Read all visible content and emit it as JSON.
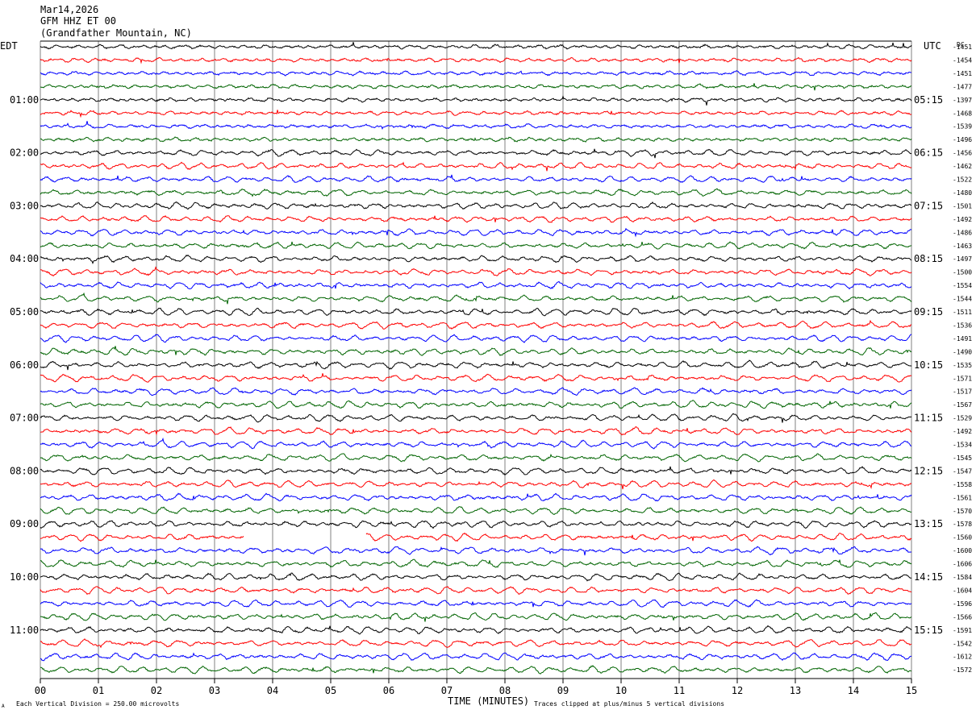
{
  "header": {
    "date": "Mar14,2026",
    "channel": "GFM HHZ ET 00",
    "station": "(Grandfather Mountain, NC)"
  },
  "labels": {
    "left_tz": "EDT",
    "right_tz": "UTC",
    "dc_header": "DC",
    "x_axis_title": "TIME (MINUTES)",
    "footer_left": "Each Vertical Division =  250.00 microvolts",
    "footer_right": "Traces clipped at plus/minus 5 vertical divisions",
    "footer_mark": "A"
  },
  "colors": [
    "#000000",
    "#ff0000",
    "#0000ff",
    "#006400"
  ],
  "chart_data": {
    "type": "line",
    "title": "GFM HHZ ET 00",
    "xlabel": "TIME (MINUTES)",
    "xlim": [
      0,
      15
    ],
    "x_ticks": [
      "00",
      "01",
      "02",
      "03",
      "04",
      "05",
      "06",
      "07",
      "08",
      "09",
      "10",
      "11",
      "12",
      "13",
      "14",
      "15"
    ],
    "trace_minutes": 15,
    "trace_count": 48,
    "left_hour_labels": [
      "01:00",
      "02:00",
      "03:00",
      "04:00",
      "05:00",
      "06:00",
      "07:00",
      "08:00",
      "09:00",
      "10:00",
      "11:00"
    ],
    "right_hour_labels": [
      "05:15",
      "06:15",
      "07:15",
      "08:15",
      "09:15",
      "10:15",
      "11:15",
      "12:15",
      "13:15",
      "14:15",
      "15:15"
    ],
    "dc_offsets": [
      -1451,
      -1454,
      -1451,
      -1477,
      -1397,
      -1468,
      -1539,
      -1496,
      -1456,
      -1462,
      -1522,
      -1480,
      -1501,
      -1492,
      -1486,
      -1463,
      -1497,
      -1500,
      -1554,
      -1544,
      -1511,
      -1536,
      -1491,
      -1490,
      -1535,
      -1571,
      -1517,
      -1567,
      -1529,
      -1492,
      -1534,
      -1545,
      -1547,
      -1558,
      -1561,
      -1570,
      -1578,
      -1560,
      -1600,
      -1606,
      -1584,
      -1604,
      -1596,
      -1566,
      -1591,
      -1542,
      -1612,
      -1572
    ],
    "gaps": [
      {
        "trace": 37,
        "from_min": 3.5,
        "to_min": 5.6
      }
    ],
    "vertical_division_microvolts": 250.0,
    "clip_divisions": 5
  }
}
